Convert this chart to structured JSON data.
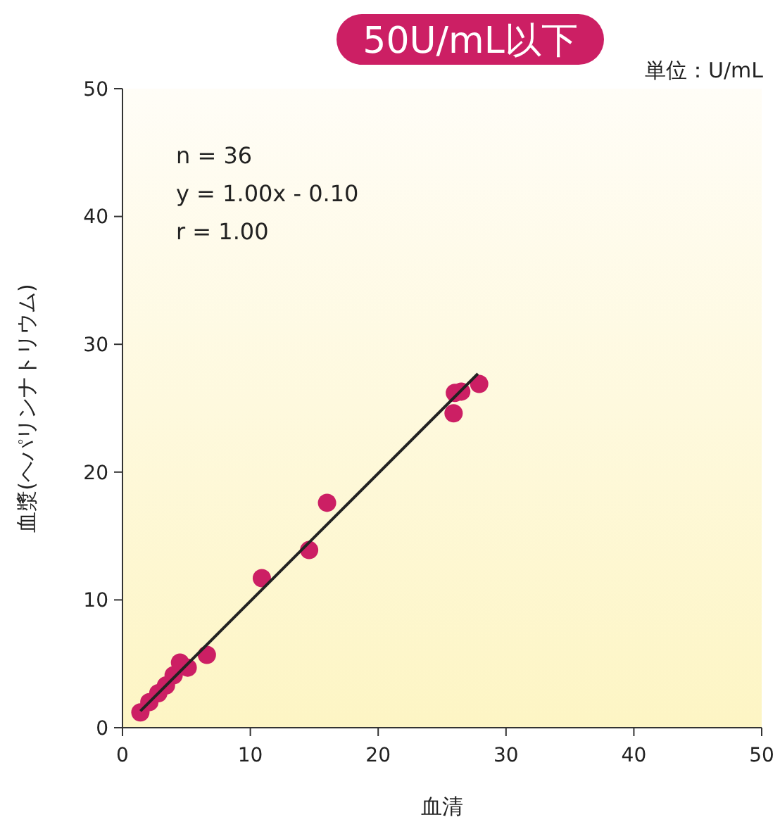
{
  "chart_data": {
    "type": "scatter",
    "title": "50U/mL以下",
    "xlabel": "血清",
    "ylabel": "血漿(ヘパリンナトリウム)",
    "annotations": [
      "単位：U/mL",
      "n = 36",
      "y = 1.00x - 0.10",
      "r = 1.00"
    ],
    "xlim": [
      0,
      50
    ],
    "ylim": [
      0,
      50
    ],
    "xticks": [
      0,
      10,
      20,
      30,
      40,
      50
    ],
    "yticks": [
      0,
      10,
      20,
      30,
      40,
      50
    ],
    "grid": false,
    "legend": false,
    "marker": "circle",
    "series": [
      {
        "color": "#cc1f64",
        "x": [
          1.4,
          2.1,
          2.8,
          3.4,
          4.0,
          4.5,
          5.1,
          6.6,
          10.9,
          14.6,
          16.0,
          25.9,
          26.0,
          26.5,
          27.9
        ],
        "values": [
          1.2,
          2.0,
          2.7,
          3.3,
          4.1,
          5.1,
          4.7,
          5.7,
          11.7,
          13.9,
          17.6,
          24.6,
          26.2,
          26.3,
          26.9
        ]
      },
      {
        "type": "line",
        "color": "#222222",
        "x": [
          1.4,
          27.8
        ],
        "values": [
          1.3,
          27.7
        ],
        "line_style": "solid",
        "marker": "none"
      }
    ]
  }
}
